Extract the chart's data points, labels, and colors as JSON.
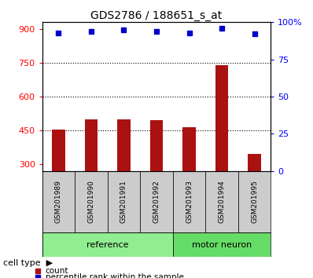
{
  "title": "GDS2786 / 188651_s_at",
  "samples": [
    "GSM201989",
    "GSM201990",
    "GSM201991",
    "GSM201992",
    "GSM201993",
    "GSM201994",
    "GSM201995"
  ],
  "counts": [
    455,
    500,
    498,
    495,
    465,
    740,
    345
  ],
  "percentile_ranks": [
    93,
    94,
    95,
    94,
    93,
    96,
    92
  ],
  "bar_color": "#AA1111",
  "dot_color": "#0000CC",
  "left_yticks": [
    300,
    450,
    600,
    750,
    900
  ],
  "right_yticks": [
    0,
    25,
    50,
    75,
    100
  ],
  "ylim_left": [
    270,
    930
  ],
  "background_color": "#ffffff",
  "label_bg_color": "#cccccc",
  "ref_color": "#90EE90",
  "motor_color": "#66DD66",
  "legend_count_label": "count",
  "legend_percentile_label": "percentile rank within the sample",
  "cell_type_label": "cell type",
  "groups_def": [
    {
      "label": "reference",
      "start": 0,
      "end": 3
    },
    {
      "label": "motor neuron",
      "start": 4,
      "end": 6
    }
  ]
}
